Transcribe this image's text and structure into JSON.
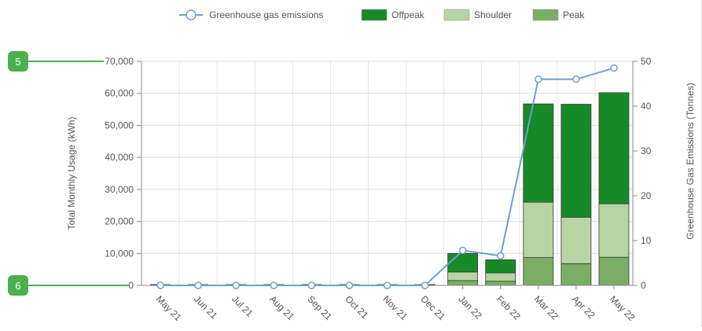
{
  "chart_data": {
    "type": "bar",
    "categories": [
      "May 21",
      "Jun 21",
      "Jul 21",
      "Aug 21",
      "Sep 21",
      "Oct 21",
      "Nov 21",
      "Dec 21",
      "Jan 22",
      "Feb 22",
      "Mar 22",
      "Apr 22",
      "May 22"
    ],
    "series": [
      {
        "name": "Peak",
        "color": "#7aae63",
        "values": [
          0,
          0,
          0,
          0,
          0,
          0,
          0,
          0,
          1500,
          1300,
          8700,
          6800,
          8800
        ]
      },
      {
        "name": "Shoulder",
        "color": "#b5d5a2",
        "values": [
          0,
          0,
          0,
          0,
          0,
          0,
          0,
          0,
          2700,
          2600,
          17300,
          14500,
          16700
        ]
      },
      {
        "name": "Offpeak",
        "color": "#168a27",
        "values": [
          0,
          0,
          0,
          0,
          0,
          0,
          0,
          0,
          5800,
          4100,
          30700,
          35300,
          34700
        ]
      }
    ],
    "line_series": {
      "name": "Greenhouse gas emissions",
      "color": "#6f9fd4",
      "values": [
        0,
        0,
        0,
        0,
        0,
        0,
        0,
        0,
        7.8,
        6.6,
        46,
        46,
        48.5
      ]
    },
    "ylabel": "Total Monthly Usage (kWh)",
    "y2label": "Greenhouse Gas Emissions (Tonnes)",
    "ylim": [
      0,
      70000
    ],
    "y2lim": [
      0,
      50
    ],
    "yticks": [
      "0",
      "10,000",
      "20,000",
      "30,000",
      "40,000",
      "50,000",
      "60,000",
      "70,000"
    ],
    "y2ticks": [
      "0",
      "10",
      "20",
      "30",
      "40",
      "50"
    ],
    "legend_position": "top",
    "grid": true,
    "stacked": true
  },
  "legend": {
    "items": [
      {
        "label": "Greenhouse gas emissions",
        "kind": "line",
        "color": "#6f9fd4"
      },
      {
        "label": "Offpeak",
        "kind": "box",
        "color": "#168a27"
      },
      {
        "label": "Shoulder",
        "kind": "box",
        "color": "#b5d5a2"
      },
      {
        "label": "Peak",
        "kind": "box",
        "color": "#7aae63"
      }
    ]
  },
  "callouts": [
    {
      "label": "5",
      "color": "#4caf50"
    },
    {
      "label": "6",
      "color": "#4caf50"
    }
  ]
}
